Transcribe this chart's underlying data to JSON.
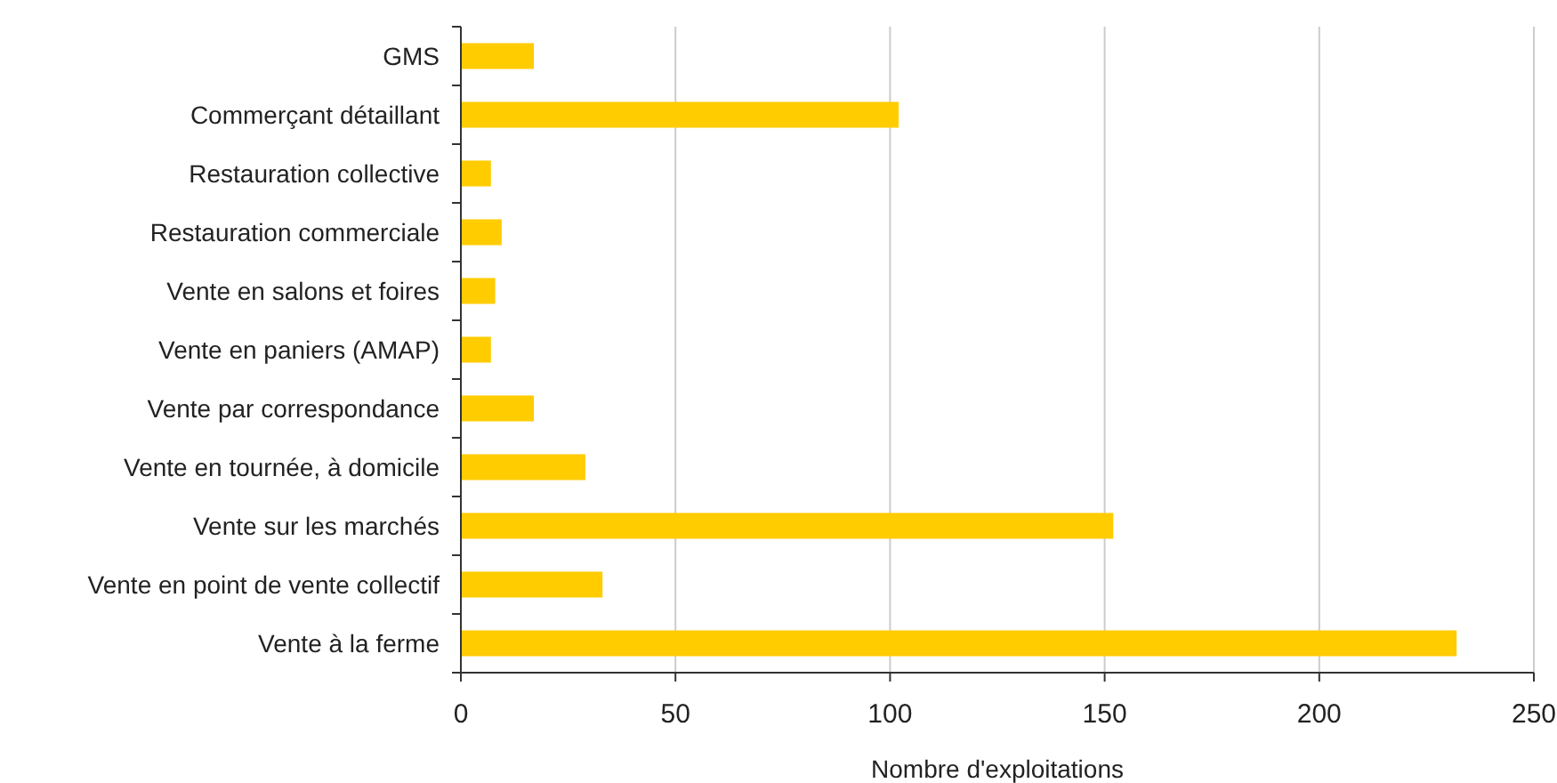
{
  "chart_data": {
    "type": "bar",
    "orientation": "horizontal",
    "xlabel": "Nombre d'exploitations",
    "categories": [
      "GMS",
      "Commerçant détaillant",
      "Restauration collective",
      "Restauration commerciale",
      "Vente en salons et foires",
      "Vente en paniers (AMAP)",
      "Vente par correspondance",
      "Vente en tournée, à domicile",
      "Vente sur les marchés",
      "Vente en point de vente collectif",
      "Vente à la ferme"
    ],
    "values": [
      17,
      102,
      7,
      9.5,
      8,
      7,
      17,
      29,
      152,
      33,
      232
    ],
    "color": "#ffcc00",
    "xlim": [
      0,
      250
    ],
    "xticks": [
      0,
      50,
      100,
      150,
      200,
      250
    ],
    "grid": "x"
  }
}
